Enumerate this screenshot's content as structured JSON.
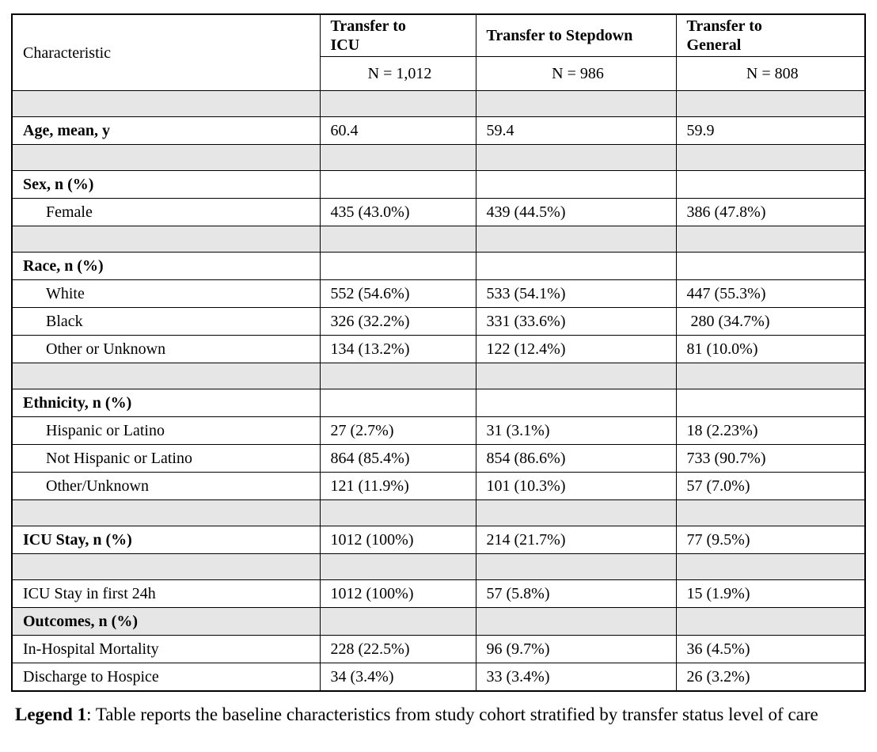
{
  "table": {
    "characteristic_label": "Characteristic",
    "columns": [
      {
        "title": "Transfer to\nICU",
        "n": "N = 1,012"
      },
      {
        "title": "Transfer to Stepdown",
        "n": "N = 986"
      },
      {
        "title": "Transfer to\nGeneral",
        "n": "N = 808"
      }
    ],
    "rows": [
      {
        "type": "spacer"
      },
      {
        "label": "Age, mean, y",
        "bold": true,
        "values": [
          "60.4",
          "59.4",
          "59.9"
        ]
      },
      {
        "type": "spacer"
      },
      {
        "label": "Sex, n (%)",
        "bold": true,
        "values": [
          "",
          "",
          ""
        ]
      },
      {
        "label": "Female",
        "indent": true,
        "values": [
          "435 (43.0%)",
          "439 (44.5%)",
          "386 (47.8%)"
        ]
      },
      {
        "type": "spacer"
      },
      {
        "label": "Race, n (%)",
        "bold": true,
        "values": [
          "",
          "",
          ""
        ]
      },
      {
        "label": "White",
        "indent": true,
        "values": [
          "552 (54.6%)",
          "533 (54.1%)",
          "447 (55.3%)"
        ]
      },
      {
        "label": "Black",
        "indent": true,
        "values": [
          "326 (32.2%)",
          "331 (33.6%)",
          " 280 (34.7%)"
        ]
      },
      {
        "label": "Other or Unknown",
        "indent": true,
        "values": [
          "134 (13.2%)",
          "122 (12.4%)",
          "81 (10.0%)"
        ]
      },
      {
        "type": "spacer"
      },
      {
        "label": "Ethnicity, n (%)",
        "bold": true,
        "values": [
          "",
          "",
          ""
        ]
      },
      {
        "label": "Hispanic or Latino",
        "indent": true,
        "values": [
          "27 (2.7%)",
          "31 (3.1%)",
          "18 (2.23%)"
        ]
      },
      {
        "label": "Not Hispanic or Latino",
        "indent": true,
        "values": [
          "864 (85.4%)",
          "854 (86.6%)",
          "733 (90.7%)"
        ]
      },
      {
        "label": "Other/Unknown",
        "indent": true,
        "values": [
          "121 (11.9%)",
          "101 (10.3%)",
          "57 (7.0%)"
        ]
      },
      {
        "type": "spacer"
      },
      {
        "label": "ICU Stay, n (%)",
        "bold": true,
        "values": [
          "1012 (100%)",
          "214 (21.7%)",
          "77 (9.5%)"
        ]
      },
      {
        "type": "spacer"
      },
      {
        "label": "ICU Stay in first 24h",
        "values": [
          "1012 (100%)",
          "57 (5.8%)",
          "15 (1.9%)"
        ]
      },
      {
        "label": "Outcomes, n (%)",
        "bold": true,
        "shaded": true,
        "values": [
          "",
          "",
          ""
        ]
      },
      {
        "label": "In-Hospital Mortality",
        "values": [
          "228 (22.5%)",
          "96 (9.7%)",
          "36 (4.5%)"
        ]
      },
      {
        "label": "Discharge to Hospice",
        "values": [
          "34 (3.4%)",
          "33 (3.4%)",
          "26 (3.2%)"
        ]
      }
    ]
  },
  "legend": {
    "label": "Legend 1",
    "text": ": Table reports the baseline characteristics from study cohort stratified by transfer status level of care"
  },
  "colors": {
    "row_shading": "#e6e6e6",
    "border": "#000000",
    "text": "#000000"
  }
}
